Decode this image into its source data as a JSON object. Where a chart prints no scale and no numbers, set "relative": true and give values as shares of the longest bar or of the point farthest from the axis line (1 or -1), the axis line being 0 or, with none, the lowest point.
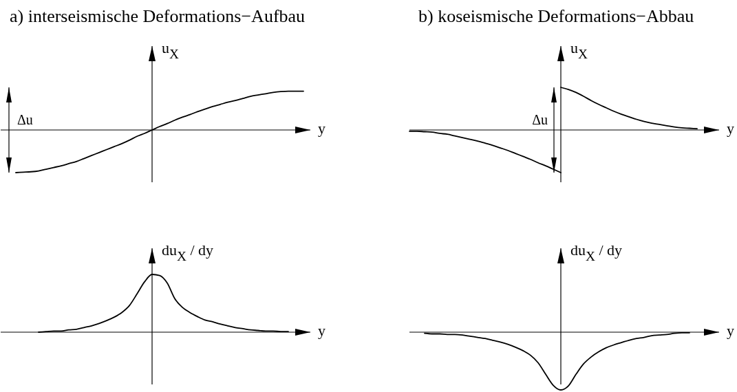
{
  "chart_data": [
    {
      "type": "line",
      "title": "a) interseismische Deformations−Aufbau",
      "xlabel": "y",
      "ylabel": "u$_{X}$",
      "relative": true,
      "annotations": [
        "Δu"
      ],
      "categories": [
        null,
        null,
        null,
        null,
        null,
        null,
        null,
        null,
        null,
        null,
        null,
        null,
        null,
        null,
        null,
        null,
        null,
        null,
        null,
        null,
        null,
        null,
        null,
        null,
        null,
        null,
        null,
        null,
        null,
        null,
        null,
        null,
        null,
        null,
        null,
        null,
        null,
        null,
        null,
        null,
        null
      ],
      "series": [
        {
          "color": "#000000",
          "values": [
            null,
            null,
            -1,
            -0.99,
            -0.98,
            -0.96,
            -0.92,
            -0.88,
            -0.84,
            -0.79,
            -0.74,
            -0.67,
            -0.6,
            -0.53,
            -0.46,
            -0.39,
            -0.32,
            -0.24,
            -0.15,
            -0.08,
            0,
            0.08,
            0.15,
            0.23,
            0.3,
            0.36,
            0.43,
            0.49,
            0.55,
            0.6,
            0.65,
            0.69,
            0.74,
            0.79,
            0.82,
            0.85,
            0.88,
            0.9,
            0.91,
            0.91,
            0.91
          ]
        }
      ]
    },
    {
      "type": "line",
      "title": "b) koseismische Deformations−Abbau",
      "xlabel": "y",
      "ylabel": "u$_{X}$",
      "relative": true,
      "annotations": [
        "Δu"
      ],
      "categories": [
        null,
        null,
        null,
        null,
        null,
        null,
        null,
        null,
        null,
        null,
        null,
        null,
        null,
        null,
        null,
        null,
        null,
        null,
        null,
        null,
        null,
        null,
        null,
        null,
        null,
        null,
        null,
        null,
        null,
        null,
        null,
        null,
        null,
        null,
        null,
        null,
        null,
        null,
        null,
        null,
        null
      ],
      "series": [
        {
          "color": "#000000",
          "values": [
            -0.03,
            -0.03,
            -0.04,
            -0.05,
            -0.08,
            -0.1,
            -0.14,
            -0.18,
            -0.22,
            -0.26,
            -0.31,
            -0.36,
            -0.42,
            -0.48,
            -0.55,
            -0.62,
            -0.69,
            -0.77,
            -0.84,
            -0.92,
            -1,
            null,
            null,
            null,
            null,
            null,
            null,
            null,
            null,
            null,
            null,
            null,
            null,
            null,
            null,
            null,
            null,
            null,
            null,
            null,
            null
          ]
        },
        {
          "color": "#000000",
          "values": [
            null,
            null,
            null,
            null,
            null,
            null,
            null,
            null,
            null,
            null,
            null,
            null,
            null,
            null,
            null,
            null,
            null,
            null,
            null,
            null,
            1,
            0.95,
            0.88,
            0.79,
            0.69,
            0.6,
            0.52,
            0.44,
            0.37,
            0.31,
            0.25,
            0.2,
            0.16,
            0.13,
            0.1,
            0.07,
            0.05,
            0.04,
            0.03,
            null,
            null
          ]
        }
      ]
    },
    {
      "type": "line",
      "xlabel": "y",
      "ylabel": "du$_{X}$ / dy",
      "relative": true,
      "categories": [
        null,
        null,
        null,
        null,
        null,
        null,
        null,
        null,
        null,
        null,
        null,
        null,
        null,
        null,
        null,
        null,
        null,
        null,
        null,
        null,
        null,
        null,
        null,
        null,
        null,
        null,
        null,
        null,
        null,
        null,
        null,
        null,
        null,
        null,
        null,
        null,
        null,
        null,
        null,
        null,
        null
      ],
      "series": [
        {
          "color": "#000000",
          "values": [
            null,
            null,
            null,
            null,
            null,
            0,
            0.01,
            0.02,
            0.02,
            0.04,
            0.05,
            0.08,
            0.11,
            0.15,
            0.2,
            0.26,
            0.34,
            0.46,
            0.66,
            0.87,
            1,
            0.98,
            0.85,
            0.58,
            0.43,
            0.34,
            0.27,
            0.21,
            0.18,
            0.14,
            0.11,
            0.08,
            0.06,
            0.04,
            0.03,
            0.02,
            0.02,
            0.01,
            0.01,
            null,
            null
          ]
        }
      ]
    },
    {
      "type": "line",
      "xlabel": "y",
      "ylabel": "du$_{X}$ / dy",
      "relative": true,
      "categories": [
        null,
        null,
        null,
        null,
        null,
        null,
        null,
        null,
        null,
        null,
        null,
        null,
        null,
        null,
        null,
        null,
        null,
        null,
        null,
        null,
        null,
        null,
        null,
        null,
        null,
        null,
        null,
        null,
        null,
        null,
        null,
        null,
        null,
        null,
        null,
        null,
        null,
        null,
        null,
        null,
        null
      ],
      "series": [
        {
          "color": "#000000",
          "values": [
            null,
            null,
            -0.02,
            -0.03,
            -0.03,
            -0.04,
            -0.04,
            -0.05,
            -0.07,
            -0.09,
            -0.11,
            -0.14,
            -0.17,
            -0.21,
            -0.26,
            -0.32,
            -0.4,
            -0.53,
            -0.73,
            -0.92,
            -1,
            -0.93,
            -0.73,
            -0.55,
            -0.43,
            -0.34,
            -0.27,
            -0.22,
            -0.18,
            -0.14,
            -0.11,
            -0.09,
            -0.06,
            -0.05,
            -0.04,
            -0.02,
            -0.01,
            -0.01,
            null,
            null,
            null
          ]
        }
      ]
    }
  ]
}
